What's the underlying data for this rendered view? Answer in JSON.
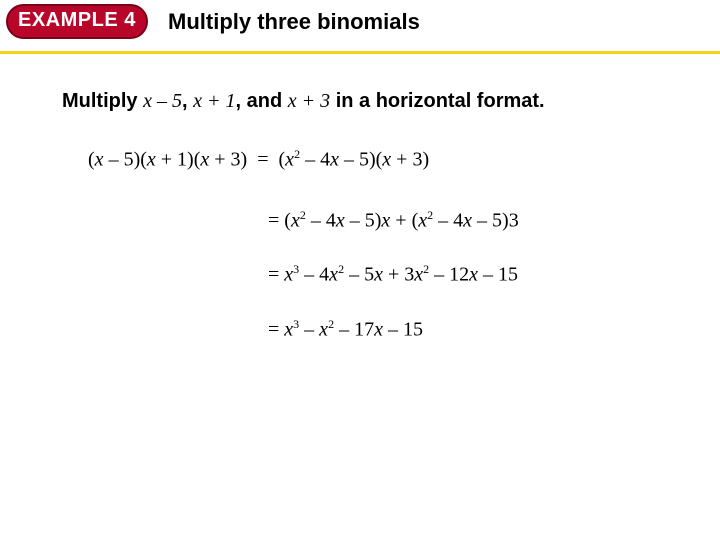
{
  "colors": {
    "badge_bg": "#b8062b",
    "badge_border": "#7a0018",
    "badge_text": "#ffffff",
    "underline": "#f4d419",
    "text": "#000000"
  },
  "header": {
    "badge": "EXAMPLE 4",
    "title": "Multiply three binomials"
  },
  "instruction": {
    "prefix": "Multiply ",
    "b1": "x – 5",
    "sep1": ", ",
    "b2": "x + 1",
    "sep2": ", and ",
    "b3": "x + 3",
    "suffix": " in a horizontal format."
  },
  "math": {
    "line1_lhs": "(x – 5)(x + 1)(x + 3)",
    "eq": "  =  ",
    "line1_rhs": "(x² – 4x – 5)(x + 3)",
    "step2": "= (x² – 4x – 5)x + (x² – 4x – 5)3",
    "step3": "= x³ – 4x² – 5x + 3x² – 12x – 15",
    "step4": "= x³ – x² – 17x – 15"
  }
}
